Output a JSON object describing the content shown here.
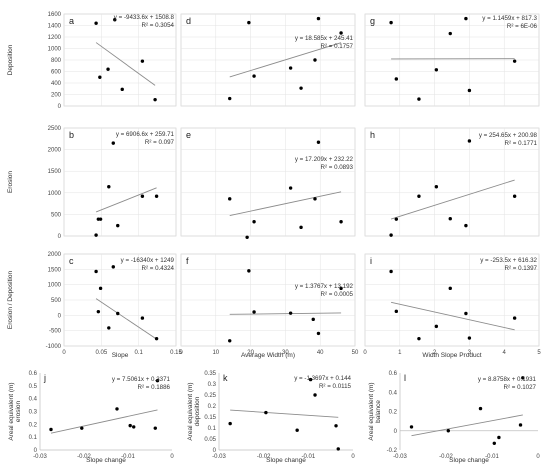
{
  "colors": {
    "point": "#000000",
    "trend": "#8c8c8c",
    "grid": "#e3e3e3",
    "axis": "#bfbfbf"
  },
  "chart_data": [
    {
      "id": "a",
      "type": "scatter",
      "label": "a",
      "equation": "y = -9433.6x + 1508.8",
      "r2": "R² = 0.3054",
      "ylabel": "Deposition",
      "xlabel": "",
      "xlim": [
        0,
        0.15
      ],
      "ylim": [
        0,
        1600
      ],
      "yticks": [
        0,
        200,
        400,
        600,
        800,
        1000,
        1200,
        1400,
        1600
      ],
      "ytick_labels": [
        "0",
        "200",
        "400",
        "600",
        "800",
        "1000",
        "1200",
        "1400",
        "1600"
      ],
      "xticks": [
        0,
        0.05,
        0.1,
        0.15
      ],
      "xtick_labels": [],
      "grid": true,
      "x": [
        0.043,
        0.048,
        0.059,
        0.068,
        0.078,
        0.105,
        0.122
      ],
      "y": [
        1440,
        500,
        640,
        1500,
        290,
        780,
        110
      ],
      "trend": {
        "x": [
          0.043,
          0.122
        ],
        "slope": -9433.6,
        "intercept": 1508.8
      }
    },
    {
      "id": "d",
      "type": "scatter",
      "label": "d",
      "equation": "y = 18.585x + 245.41",
      "r2": "R² = 0.1757",
      "ylabel": "",
      "xlabel": "",
      "xlim": [
        0,
        50
      ],
      "ylim": [
        0,
        1600
      ],
      "yticks": [
        0,
        200,
        400,
        600,
        800,
        1000,
        1200,
        1400,
        1600
      ],
      "ytick_labels": [],
      "xticks": [
        0,
        10,
        20,
        30,
        40,
        50
      ],
      "xtick_labels": [],
      "grid": true,
      "x": [
        14,
        19.5,
        21,
        31.5,
        34.5,
        38.5,
        39.5,
        46
      ],
      "y": [
        130,
        1450,
        520,
        660,
        310,
        800,
        1520,
        1270
      ],
      "trend": {
        "x": [
          14,
          46
        ],
        "slope": 18.585,
        "intercept": 245.41
      }
    },
    {
      "id": "g",
      "type": "scatter",
      "label": "g",
      "equation": "y = 1.1459x + 817.3",
      "r2": "R² = 6E-06",
      "ylabel": "",
      "xlabel": "",
      "xlim": [
        0,
        5
      ],
      "ylim": [
        0,
        1600
      ],
      "yticks": [
        0,
        200,
        400,
        600,
        800,
        1000,
        1200,
        1400,
        1600
      ],
      "ytick_labels": [],
      "xticks": [
        0,
        1,
        2,
        3,
        4,
        5
      ],
      "xtick_labels": [],
      "grid": true,
      "x": [
        0.75,
        0.9,
        1.55,
        2.05,
        2.45,
        2.9,
        3.0,
        4.3
      ],
      "y": [
        1450,
        470,
        120,
        630,
        1260,
        1520,
        270,
        780
      ],
      "trend": {
        "x": [
          0.75,
          4.3
        ],
        "slope": 1.1459,
        "intercept": 817.3
      }
    },
    {
      "id": "b",
      "type": "scatter",
      "label": "b",
      "equation": "y = 6906.6x + 259.71",
      "r2": "R² = 0.097",
      "ylabel": "Erosion",
      "xlabel": "",
      "xlim": [
        0,
        0.15
      ],
      "ylim": [
        0,
        2500
      ],
      "yticks": [
        0,
        500,
        1000,
        1500,
        2000,
        2500
      ],
      "ytick_labels": [
        "0",
        "500",
        "1000",
        "1500",
        "2000",
        "2500"
      ],
      "xticks": [
        0,
        0.05,
        0.1,
        0.15
      ],
      "xtick_labels": [],
      "grid": true,
      "x": [
        0.043,
        0.046,
        0.049,
        0.06,
        0.066,
        0.072,
        0.105,
        0.124
      ],
      "y": [
        20,
        390,
        390,
        1140,
        2150,
        240,
        920,
        920
      ],
      "trend": {
        "x": [
          0.043,
          0.124
        ],
        "slope": 6906.6,
        "intercept": 259.71
      }
    },
    {
      "id": "e",
      "type": "scatter",
      "label": "e",
      "equation": "y = 17.209x + 232.22",
      "r2": "R² = 0.0893",
      "ylabel": "",
      "xlabel": "",
      "xlim": [
        0,
        50
      ],
      "ylim": [
        0,
        2500
      ],
      "yticks": [
        0,
        500,
        1000,
        1500,
        2000,
        2500
      ],
      "ytick_labels": [],
      "xticks": [
        0,
        10,
        20,
        30,
        40,
        50
      ],
      "xtick_labels": [],
      "grid": true,
      "x": [
        14,
        19,
        21,
        31.5,
        34.5,
        38.5,
        39.5,
        46
      ],
      "y": [
        860,
        -30,
        330,
        1110,
        200,
        860,
        2170,
        330
      ],
      "trend": {
        "x": [
          14,
          46
        ],
        "slope": 17.209,
        "intercept": 232.22
      }
    },
    {
      "id": "h",
      "type": "scatter",
      "label": "h",
      "equation": "y = 254.65x + 200.98",
      "r2": "R² = 0.1771",
      "ylabel": "",
      "xlabel": "",
      "xlim": [
        0,
        5
      ],
      "ylim": [
        0,
        2500
      ],
      "yticks": [
        0,
        500,
        1000,
        1500,
        2000,
        2500
      ],
      "ytick_labels": [],
      "xticks": [
        0,
        1,
        2,
        3,
        4,
        5
      ],
      "xtick_labels": [],
      "grid": true,
      "x": [
        0.75,
        0.9,
        1.55,
        2.05,
        2.45,
        2.9,
        3.0,
        4.3
      ],
      "y": [
        20,
        390,
        920,
        1140,
        400,
        240,
        2200,
        920
      ],
      "trend": {
        "x": [
          0.75,
          4.3
        ],
        "slope": 254.65,
        "intercept": 200.98
      }
    },
    {
      "id": "c",
      "type": "scatter",
      "label": "c",
      "equation": "y = -16340x + 1249",
      "r2": "R² = 0.4324",
      "ylabel": "Erosion / Deposition",
      "xlabel": "Slope",
      "xlim": [
        0,
        0.15
      ],
      "ylim": [
        -1000,
        2000
      ],
      "yticks": [
        -1000,
        -500,
        0,
        500,
        1000,
        1500,
        2000
      ],
      "ytick_labels": [
        "-1000",
        "-500",
        "0",
        "500",
        "1000",
        "1500",
        "2000"
      ],
      "xticks": [
        0,
        0.05,
        0.1,
        0.15
      ],
      "xtick_labels": [
        "0",
        "0.05",
        "0.1",
        "0.15"
      ],
      "grid": true,
      "x": [
        0.043,
        0.046,
        0.049,
        0.06,
        0.066,
        0.072,
        0.105,
        0.124
      ],
      "y": [
        1430,
        120,
        880,
        -410,
        1580,
        60,
        -90,
        -760
      ],
      "trend": {
        "x": [
          0.043,
          0.124
        ],
        "slope": -16340,
        "intercept": 1249
      }
    },
    {
      "id": "f",
      "type": "scatter",
      "label": "f",
      "equation": "y = 1.3767x + 13.192",
      "r2": "R² = 0.0005",
      "ylabel": "",
      "xlabel": "Average Width (m)",
      "xlim": [
        0,
        50
      ],
      "ylim": [
        -1000,
        2000
      ],
      "yticks": [
        -1000,
        -500,
        0,
        500,
        1000,
        1500,
        2000
      ],
      "ytick_labels": [],
      "xticks": [
        0,
        10,
        20,
        30,
        40,
        50
      ],
      "xtick_labels": [
        "0",
        "10",
        "20",
        "30",
        "40",
        "50"
      ],
      "grid": true,
      "x": [
        14,
        19.5,
        21,
        31.5,
        38,
        39.5,
        46
      ],
      "y": [
        -830,
        1450,
        110,
        70,
        -130,
        -590,
        880
      ],
      "trend": {
        "x": [
          14,
          46
        ],
        "slope": 1.3767,
        "intercept": 13.192
      }
    },
    {
      "id": "i",
      "type": "scatter",
      "label": "i",
      "equation": "y = -253.5x + 616.32",
      "r2": "R² = 0.1397",
      "ylabel": "",
      "xlabel": "Width Slope Product",
      "xlim": [
        0,
        5
      ],
      "ylim": [
        -1000,
        2000
      ],
      "yticks": [
        -1000,
        -500,
        0,
        500,
        1000,
        1500,
        2000
      ],
      "ytick_labels": [],
      "xticks": [
        0,
        1,
        2,
        3,
        4,
        5
      ],
      "xtick_labels": [
        "0",
        "1",
        "2",
        "3",
        "4",
        "5"
      ],
      "grid": true,
      "x": [
        0.75,
        0.9,
        1.55,
        2.05,
        2.45,
        2.9,
        3.0,
        4.3
      ],
      "y": [
        1430,
        130,
        -760,
        -360,
        880,
        60,
        -740,
        -90
      ],
      "trend": {
        "x": [
          0.75,
          4.3
        ],
        "slope": -253.5,
        "intercept": 616.32
      }
    },
    {
      "id": "j",
      "type": "scatter",
      "label": "j",
      "equation": "y = 7.5061x + 0.3371",
      "r2": "R² = 0.1886",
      "ylabel": "Areal equivalent (m) erosion",
      "xlabel": "Slope change",
      "xlim": [
        -0.03,
        0
      ],
      "ylim": [
        0,
        0.6
      ],
      "yticks": [
        0,
        0.1,
        0.2,
        0.3,
        0.4,
        0.5,
        0.6
      ],
      "ytick_labels": [
        "0",
        "0.1",
        "0.2",
        "0.3",
        "0.4",
        "0.5",
        "0.6"
      ],
      "xticks": [
        -0.03,
        -0.02,
        -0.01,
        0
      ],
      "xtick_labels": [
        "-0.03",
        "-0.02",
        "-0.01",
        "0"
      ],
      "grid": false,
      "x": [
        -0.0275,
        -0.0205,
        -0.0125,
        -0.0095,
        -0.0087,
        -0.0038,
        -0.0033
      ],
      "y": [
        0.16,
        0.17,
        0.32,
        0.19,
        0.18,
        0.17,
        0.54
      ],
      "trend": {
        "x": [
          -0.0275,
          -0.0033
        ],
        "slope": 7.5061,
        "intercept": 0.3371
      }
    },
    {
      "id": "k",
      "type": "scatter",
      "label": "k",
      "equation": "y = -1.3697x + 0.144",
      "r2": "R² = 0.0115",
      "ylabel": "Areal equivalent (m) deposition",
      "xlabel": "Slope change",
      "xlim": [
        -0.03,
        0
      ],
      "ylim": [
        0,
        0.35
      ],
      "yticks": [
        0,
        0.05,
        0.1,
        0.15,
        0.2,
        0.25,
        0.3,
        0.35
      ],
      "ytick_labels": [
        "0",
        "0.05",
        "0.1",
        "0.15",
        "0.2",
        "0.25",
        "0.3",
        "0.35"
      ],
      "xticks": [
        -0.03,
        -0.02,
        -0.01,
        0
      ],
      "xtick_labels": [
        "-0.03",
        "-0.02",
        "-0.01",
        "0"
      ],
      "grid": false,
      "x": [
        -0.0275,
        -0.0195,
        -0.0125,
        -0.0095,
        -0.0085,
        -0.0038,
        -0.0033
      ],
      "y": [
        0.12,
        0.17,
        0.09,
        0.32,
        0.25,
        0.11,
        0.005
      ],
      "trend": {
        "x": [
          -0.0275,
          -0.0033
        ],
        "slope": -1.3697,
        "intercept": 0.144
      }
    },
    {
      "id": "l",
      "type": "scatter",
      "label": "l",
      "equation": "y = 8.8758x + 0.1931",
      "r2": "R² = 0.1027",
      "ylabel": "Areal equivalent (m) balance",
      "xlabel": "Slope change",
      "xlim": [
        -0.03,
        0
      ],
      "ylim": [
        -0.2,
        0.6
      ],
      "yticks": [
        -0.2,
        0,
        0.2,
        0.4,
        0.6
      ],
      "ytick_labels": [
        "-0.2",
        "0",
        "0.2",
        "0.4",
        "0.6"
      ],
      "xticks": [
        -0.03,
        -0.02,
        -0.01,
        0
      ],
      "xtick_labels": [
        "-0.03",
        "-0.02",
        "-0.01",
        "0"
      ],
      "grid": false,
      "x": [
        -0.0275,
        -0.0195,
        -0.0125,
        -0.0095,
        -0.0085,
        -0.0038,
        -0.0033
      ],
      "y": [
        0.04,
        0.0,
        0.23,
        -0.13,
        -0.07,
        0.06,
        0.55
      ],
      "trend": {
        "x": [
          -0.0275,
          -0.0033
        ],
        "slope": 8.8758,
        "intercept": 0.1931
      }
    }
  ]
}
